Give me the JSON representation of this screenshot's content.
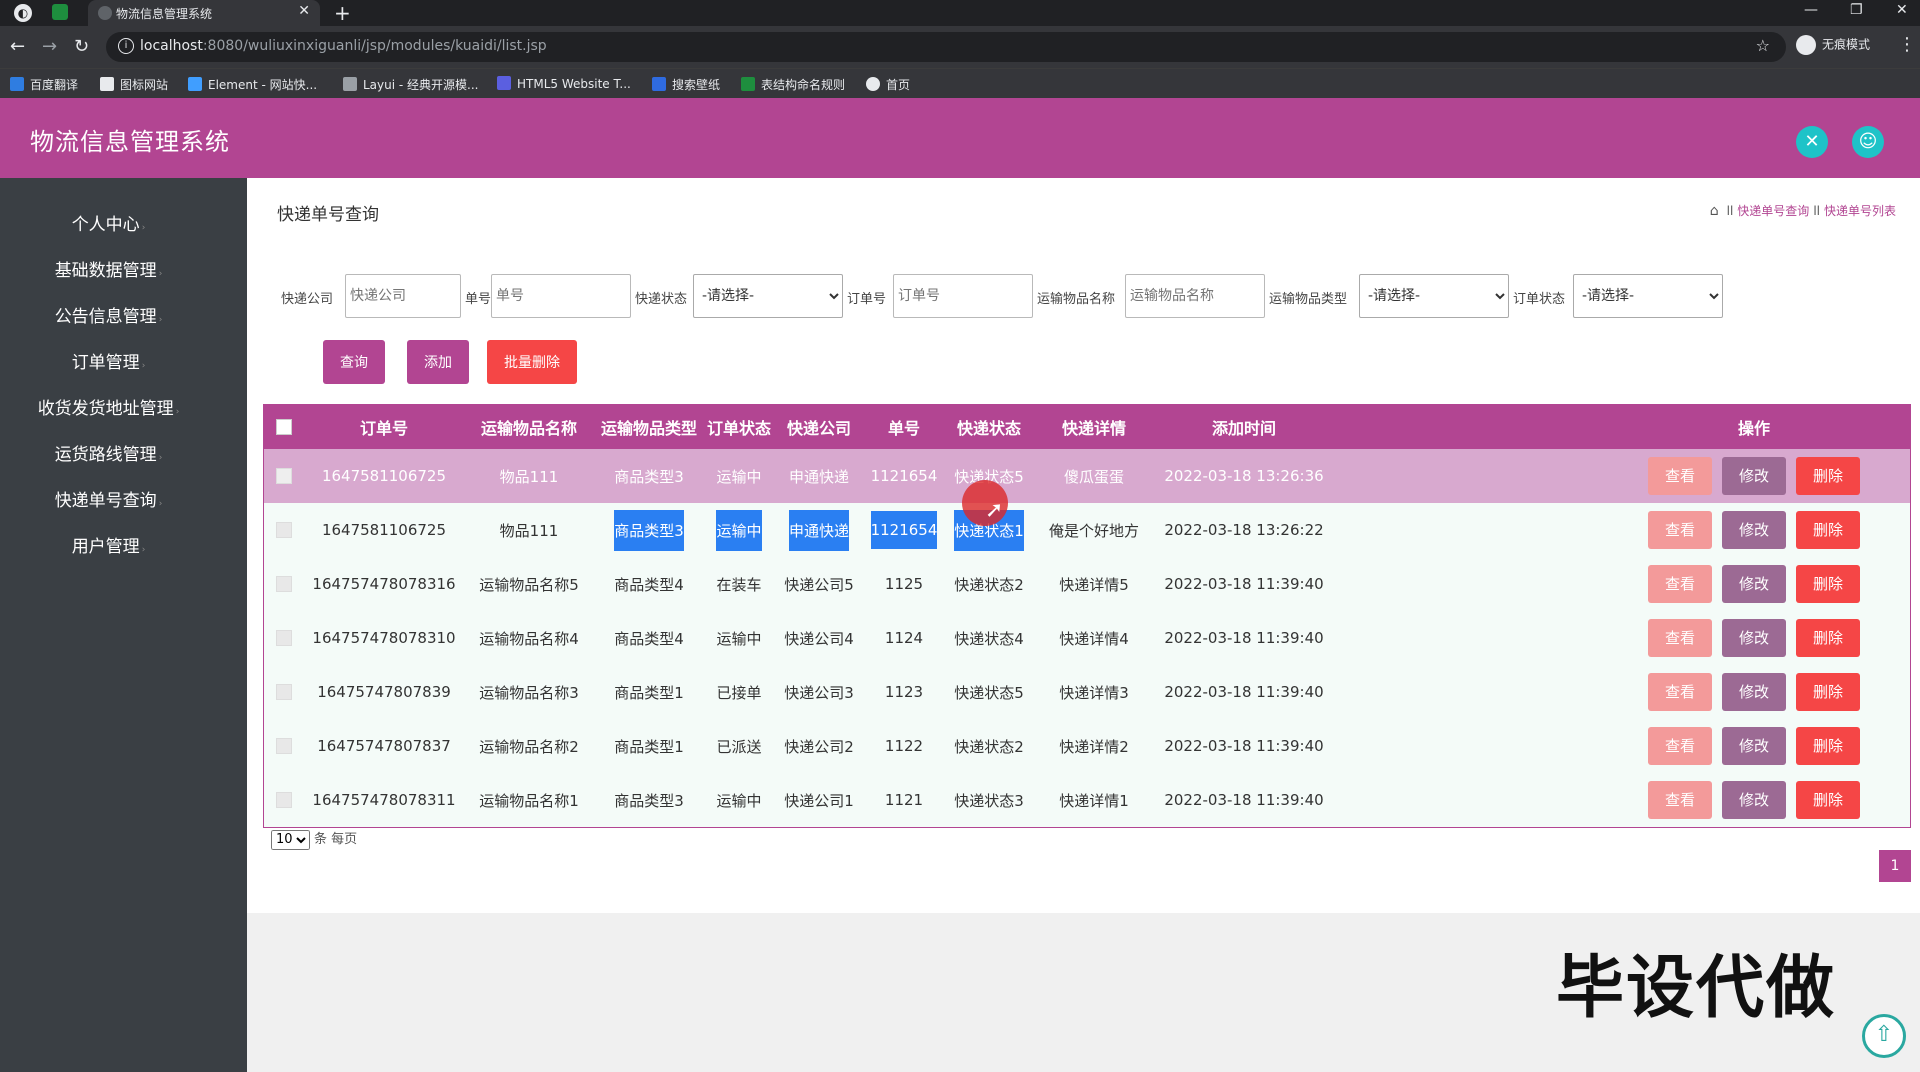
{
  "browser": {
    "tab_title": "物流信息管理系统",
    "url_host": "localhost",
    "url_path": ":8080/wuliuxinxiguanli/jsp/modules/kuaidi/list.jsp",
    "incognito_label": "无痕模式",
    "bookmarks": [
      "百度翻译",
      "图标网站",
      "Element - 网站快...",
      "Layui - 经典开源模...",
      "HTML5 Website T...",
      "搜索壁纸",
      "表结构命名规则",
      "首页"
    ]
  },
  "app": {
    "title": "物流信息管理系统",
    "accent": "#b24592"
  },
  "sidebar": {
    "items": [
      {
        "label": "个人中心"
      },
      {
        "label": "基础数据管理"
      },
      {
        "label": "公告信息管理"
      },
      {
        "label": "订单管理"
      },
      {
        "label": "收货发货地址管理"
      },
      {
        "label": "运货路线管理"
      },
      {
        "label": "快递单号查询"
      },
      {
        "label": "用户管理"
      }
    ]
  },
  "page": {
    "title": "快递单号查询",
    "breadcrumb": [
      "快递单号查询",
      "快递单号列表"
    ]
  },
  "filters": {
    "company_label": "快递公司",
    "company_placeholder": "快递公司",
    "number_label": "单号",
    "number_placeholder": "单号",
    "kd_status_label": "快递状态",
    "kd_status_value": "-请选择-",
    "order_label": "订单号",
    "order_placeholder": "订单号",
    "goods_name_label": "运输物品名称",
    "goods_name_placeholder": "运输物品名称",
    "goods_type_label": "运输物品类型",
    "goods_type_value": "-请选择-",
    "order_status_label": "订单状态",
    "order_status_value": "-请选择-"
  },
  "buttons": {
    "query": "查询",
    "add": "添加",
    "batch_delete": "批量删除"
  },
  "table": {
    "headers": [
      "订单号",
      "运输物品名称",
      "运输物品类型",
      "订单状态",
      "快递公司",
      "单号",
      "快递状态",
      "快递详情",
      "添加时间",
      "操作"
    ],
    "actions": {
      "view": "查看",
      "edit": "修改",
      "delete": "删除"
    },
    "rows": [
      [
        "1647581106725",
        "物品111",
        "商品类型3",
        "运输中",
        "申通快递",
        "1121654",
        "快递状态5",
        "傻瓜蛋蛋",
        "2022-03-18 13:26:36"
      ],
      [
        "1647581106725",
        "物品111",
        "商品类型3",
        "运输中",
        "申通快递",
        "1121654",
        "快递状态1",
        "俺是个好地方",
        "2022-03-18 13:26:22"
      ],
      [
        "164757478078316",
        "运输物品名称5",
        "商品类型4",
        "在装车",
        "快递公司5",
        "1125",
        "快递状态2",
        "快递详情5",
        "2022-03-18 11:39:40"
      ],
      [
        "164757478078310",
        "运输物品名称4",
        "商品类型4",
        "运输中",
        "快递公司4",
        "1124",
        "快递状态4",
        "快递详情4",
        "2022-03-18 11:39:40"
      ],
      [
        "16475747807839",
        "运输物品名称3",
        "商品类型1",
        "已接单",
        "快递公司3",
        "1123",
        "快递状态5",
        "快递详情3",
        "2022-03-18 11:39:40"
      ],
      [
        "16475747807837",
        "运输物品名称2",
        "商品类型1",
        "已派送",
        "快递公司2",
        "1122",
        "快递状态2",
        "快递详情2",
        "2022-03-18 11:39:40"
      ],
      [
        "164757478078311",
        "运输物品名称1",
        "商品类型3",
        "运输中",
        "快递公司1",
        "1121",
        "快递状态3",
        "快递详情1",
        "2022-03-18 11:39:40"
      ]
    ]
  },
  "pager": {
    "page_size": "10",
    "per_page_label": "条 每页",
    "current_page": "1"
  },
  "watermark": "毕设代做"
}
